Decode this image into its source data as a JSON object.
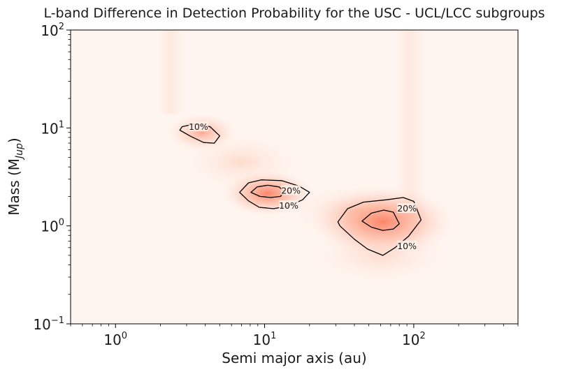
{
  "chart_data": {
    "type": "heatmap",
    "title": "L-band Difference in Detection Probability for the USC - UCL/LCC subgroups",
    "xlabel": "Semi major axis (au)",
    "ylabel": "Mass (M",
    "ylabel_sub": "Jup",
    "ylabel_close": ")",
    "x_scale": "log",
    "y_scale": "log",
    "xlim": [
      0.5,
      500
    ],
    "ylim": [
      0.1,
      100
    ],
    "x_ticks": [
      {
        "value": 1,
        "base": "10",
        "exp": "0"
      },
      {
        "value": 10,
        "base": "10",
        "exp": "1"
      },
      {
        "value": 100,
        "base": "10",
        "exp": "2"
      }
    ],
    "y_ticks": [
      {
        "value": 0.1,
        "base": "10",
        "exp": "−1"
      },
      {
        "value": 1,
        "base": "10",
        "exp": "0"
      },
      {
        "value": 10,
        "base": "10",
        "exp": "1"
      },
      {
        "value": 100,
        "base": "10",
        "exp": "2"
      }
    ],
    "colormap": [
      "#fff5f0",
      "#fcbba1",
      "#fb6a4a"
    ],
    "grid": false,
    "hotspots": [
      {
        "a": 3.8,
        "m": 9.0,
        "peak": 0.13
      },
      {
        "a": 10.5,
        "m": 2.15,
        "peak": 0.32
      },
      {
        "a": 62,
        "m": 1.1,
        "peak": 0.3
      }
    ],
    "contours": [
      {
        "level": "10%",
        "label": "10%",
        "label_at": [
          3.6,
          10.2
        ],
        "path": [
          [
            2.8,
            10.3
          ],
          [
            3.4,
            11.0
          ],
          [
            4.3,
            10.3
          ],
          [
            5.0,
            8.3
          ],
          [
            4.6,
            7.0
          ],
          [
            3.9,
            7.1
          ],
          [
            3.2,
            8.2
          ],
          [
            2.7,
            9.5
          ],
          [
            2.8,
            10.3
          ]
        ]
      },
      {
        "level": "10%",
        "label": "10%",
        "label_at": [
          14.5,
          1.6
        ],
        "path": [
          [
            6.8,
            2.2
          ],
          [
            7.8,
            2.75
          ],
          [
            9.5,
            2.95
          ],
          [
            13,
            2.9
          ],
          [
            17,
            2.55
          ],
          [
            20,
            2.2
          ],
          [
            18,
            1.85
          ],
          [
            14.5,
            1.6
          ],
          [
            11.5,
            1.5
          ],
          [
            9.2,
            1.55
          ],
          [
            7.8,
            1.8
          ],
          [
            6.8,
            2.2
          ]
        ]
      },
      {
        "level": "20%",
        "label": "20%",
        "label_at": [
          15.0,
          2.28
        ],
        "path": [
          [
            8.1,
            2.2
          ],
          [
            8.9,
            2.5
          ],
          [
            10.5,
            2.6
          ],
          [
            12.5,
            2.5
          ],
          [
            13.5,
            2.25
          ],
          [
            12.8,
            2.0
          ],
          [
            11,
            1.95
          ],
          [
            9.3,
            2.0
          ],
          [
            8.1,
            2.2
          ]
        ]
      },
      {
        "level": "10%",
        "label": "10%",
        "label_at": [
          90,
          0.62
        ],
        "path": [
          [
            31,
            1.1
          ],
          [
            36,
            1.5
          ],
          [
            46,
            1.75
          ],
          [
            66,
            1.85
          ],
          [
            85,
            1.95
          ],
          [
            100,
            1.78
          ],
          [
            112,
            1.15
          ],
          [
            92,
            0.78
          ],
          [
            75,
            0.6
          ],
          [
            62,
            0.5
          ],
          [
            49,
            0.58
          ],
          [
            40,
            0.73
          ],
          [
            32,
            1.0
          ],
          [
            31,
            1.1
          ]
        ]
      },
      {
        "level": "20%",
        "label": "20%",
        "label_at": [
          90,
          1.5
        ],
        "path": [
          [
            45,
            1.12
          ],
          [
            52,
            1.35
          ],
          [
            63,
            1.45
          ],
          [
            73,
            1.38
          ],
          [
            80,
            1.05
          ],
          [
            73,
            0.93
          ],
          [
            62,
            0.9
          ],
          [
            52,
            0.97
          ],
          [
            45,
            1.12
          ]
        ]
      }
    ]
  }
}
